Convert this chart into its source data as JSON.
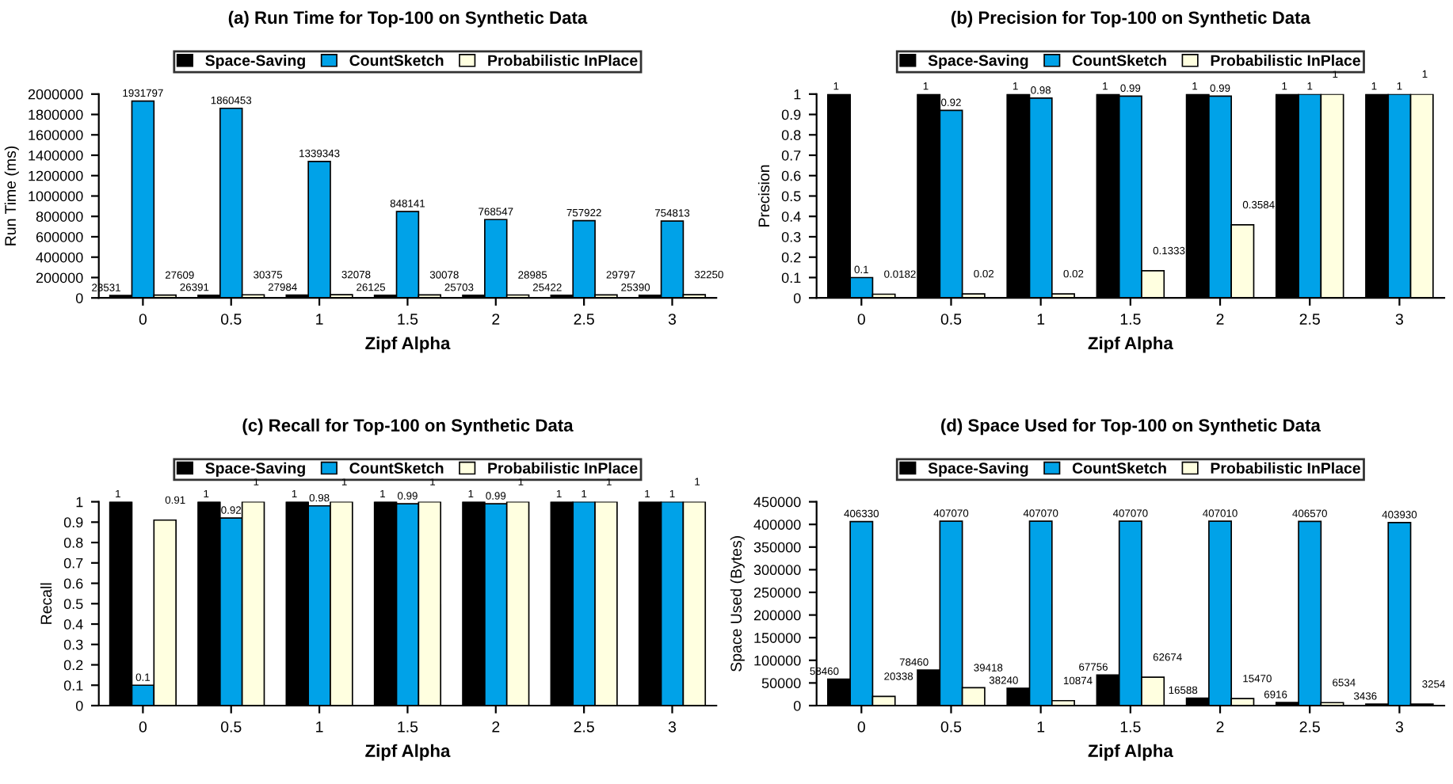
{
  "chart_data": [
    {
      "type": "bar",
      "title": "(a) Run Time for Top-100 on Synthetic Data",
      "xlabel": "Zipf Alpha",
      "ylabel": "Run Time (ms)",
      "categories": [
        "0",
        "0.5",
        "1",
        "1.5",
        "2",
        "2.5",
        "3"
      ],
      "series": [
        {
          "name": "Space-Saving",
          "color": "#000000",
          "values": [
            23531,
            26391,
            27984,
            26125,
            25703,
            25422,
            25390
          ]
        },
        {
          "name": "CountSketch",
          "color": "#00a2e8",
          "values": [
            1931797,
            1860453,
            1339343,
            848141,
            768547,
            757922,
            754813
          ]
        },
        {
          "name": "Probabilistic InPlace",
          "color": "#ffffe0",
          "values": [
            27609,
            30375,
            32078,
            30078,
            28985,
            29797,
            32250
          ]
        }
      ],
      "ylim": [
        0,
        2000000
      ],
      "yticks": [
        0,
        200000,
        400000,
        600000,
        800000,
        1000000,
        1200000,
        1400000,
        1600000,
        1800000,
        2000000
      ],
      "data_labels": true,
      "legend": "top",
      "grid": false
    },
    {
      "type": "bar",
      "title": "(b) Precision for Top-100 on Synthetic Data",
      "xlabel": "Zipf Alpha",
      "ylabel": "Precision",
      "categories": [
        "0",
        "0.5",
        "1",
        "1.5",
        "2",
        "2.5",
        "3"
      ],
      "series": [
        {
          "name": "Space-Saving",
          "color": "#000000",
          "values": [
            1,
            1,
            1,
            1,
            1,
            1,
            1
          ]
        },
        {
          "name": "CountSketch",
          "color": "#00a2e8",
          "values": [
            0.1,
            0.92,
            0.98,
            0.99,
            0.99,
            1,
            1
          ]
        },
        {
          "name": "Probabilistic InPlace",
          "color": "#ffffe0",
          "values": [
            0.0182,
            0.02,
            0.02,
            0.1333,
            0.3584,
            1,
            1
          ]
        }
      ],
      "ylim": [
        0,
        1
      ],
      "yticks": [
        0,
        0.1,
        0.2,
        0.3,
        0.4,
        0.5,
        0.6,
        0.7,
        0.8,
        0.9,
        1
      ],
      "data_labels": true,
      "legend": "top",
      "grid": false
    },
    {
      "type": "bar",
      "title": "(c) Recall for Top-100 on Synthetic Data",
      "xlabel": "Zipf Alpha",
      "ylabel": "Recall",
      "categories": [
        "0",
        "0.5",
        "1",
        "1.5",
        "2",
        "2.5",
        "3"
      ],
      "series": [
        {
          "name": "Space-Saving",
          "color": "#000000",
          "values": [
            1,
            1,
            1,
            1,
            1,
            1,
            1
          ]
        },
        {
          "name": "CountSketch",
          "color": "#00a2e8",
          "values": [
            0.1,
            0.92,
            0.98,
            0.99,
            0.99,
            1,
            1
          ]
        },
        {
          "name": "Probabilistic InPlace",
          "color": "#ffffe0",
          "values": [
            0.91,
            1,
            1,
            1,
            1,
            1,
            1
          ]
        }
      ],
      "ylim": [
        0,
        1
      ],
      "yticks": [
        0,
        0.1,
        0.2,
        0.3,
        0.4,
        0.5,
        0.6,
        0.7,
        0.8,
        0.9,
        1
      ],
      "data_labels": true,
      "legend": "top",
      "grid": false
    },
    {
      "type": "bar",
      "title": "(d) Space Used for Top-100 on Synthetic Data",
      "xlabel": "Zipf Alpha",
      "ylabel": "Space Used (Bytes)",
      "categories": [
        "0",
        "0.5",
        "1",
        "1.5",
        "2",
        "2.5",
        "3"
      ],
      "series": [
        {
          "name": "Space-Saving",
          "color": "#000000",
          "values": [
            58460,
            78460,
            38240,
            67756,
            16588,
            6916,
            3436
          ]
        },
        {
          "name": "CountSketch",
          "color": "#00a2e8",
          "values": [
            406330,
            407070,
            407070,
            407070,
            407010,
            406570,
            403930
          ]
        },
        {
          "name": "Probabilistic InPlace",
          "color": "#ffffe0",
          "values": [
            20338,
            39418,
            10874,
            62674,
            15470,
            6534,
            3254
          ]
        }
      ],
      "ylim": [
        0,
        450000
      ],
      "yticks": [
        0,
        50000,
        100000,
        150000,
        200000,
        250000,
        300000,
        350000,
        400000,
        450000
      ],
      "data_labels": true,
      "legend": "top",
      "grid": false
    }
  ]
}
